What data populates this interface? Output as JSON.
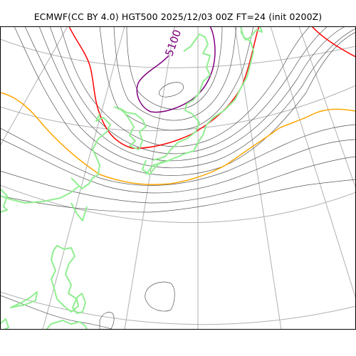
{
  "title": "ECMWF(CC BY 4.0) HGT500 2025/12/03 00Z FT=24 (init 0200Z)",
  "map": {
    "contour_label": "5100",
    "colors": {
      "graticule": "#b0b0b0",
      "contour": "#555555",
      "contour_5100": "#800080",
      "contour_5400": "#ff0000",
      "contour_5700": "#ffa500",
      "coastline": "#90ee90",
      "border": "#000000"
    }
  }
}
